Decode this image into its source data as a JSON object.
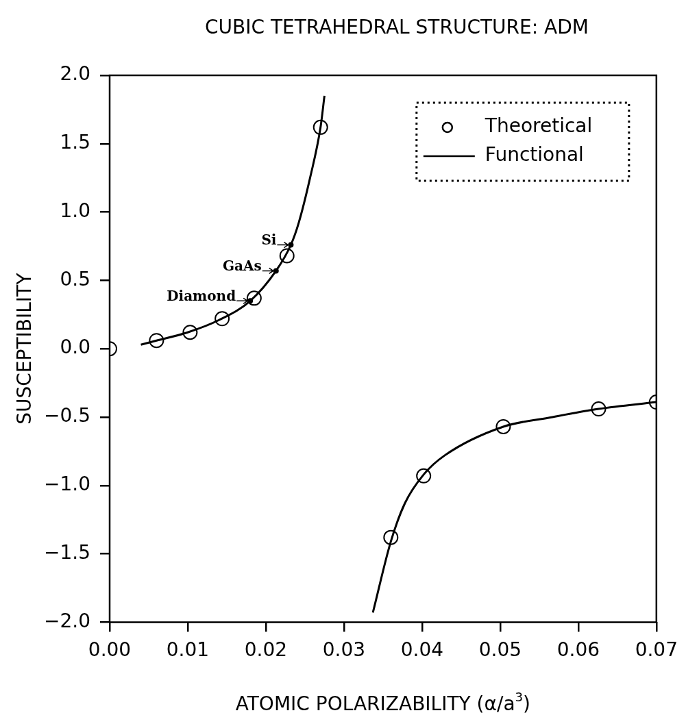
{
  "chart_data": {
    "type": "scatter",
    "title": "CUBIC TETRAHEDRAL STRUCTURE: ADM",
    "xlabel": "ATOMIC POLARIZABILITY (α/a$^{3}$)",
    "ylabel": "SUSCEPTIBILITY",
    "xlim": [
      0,
      0.07
    ],
    "ylim": [
      -2,
      2
    ],
    "xticks": [
      {
        "value": 0,
        "label": "0.00"
      },
      0.01,
      0.02,
      0.03,
      0.04,
      0.05,
      0.06,
      0.07
    ],
    "yticks": [
      {
        "value": -2,
        "label": "−2.0"
      },
      {
        "value": -1.5,
        "label": "−1.5"
      },
      {
        "value": -1,
        "label": "−1.0"
      },
      {
        "value": -0.5,
        "label": "−0.5"
      },
      {
        "value": 0,
        "label": "0.0"
      },
      0.5,
      {
        "value": 1,
        "label": "1.0"
      },
      1.5,
      {
        "value": 2,
        "label": "2.0"
      }
    ],
    "grid": false,
    "legend": "top right",
    "series": [
      {
        "name": "Theoretical",
        "type": "scatter",
        "marker": "circle",
        "color": "#000000",
        "x": [
          0,
          0.006,
          0.0103,
          0.0144,
          0.0185,
          0.0227,
          0.027,
          0.036,
          0.0402,
          0.0504,
          0.0626,
          0.07
        ],
        "values": [
          0,
          0.06,
          0.12,
          0.22,
          0.37,
          0.68,
          1.62,
          -1.38,
          -0.93,
          -0.57,
          -0.44,
          -0.39
        ]
      },
      {
        "name": "Functional",
        "type": "line",
        "marker": "none",
        "line_style": "solid",
        "color": "#000000",
        "x": [
          0.004,
          0.006,
          0.01,
          0.014,
          0.018,
          0.0213,
          0.0232,
          0.0242,
          0.0257,
          0.027,
          0.0275
        ],
        "values": [
          0.03,
          0.06,
          0.12,
          0.21,
          0.35,
          0.57,
          0.76,
          0.92,
          1.26,
          1.62,
          1.85
        ]
      },
      {
        "type": "line",
        "marker": "none",
        "line_style": "solid",
        "color": "#000000",
        "x": [
          0.0337,
          0.036,
          0.0378,
          0.0402,
          0.0429,
          0.0504,
          0.0562,
          0.0626,
          0.07
        ],
        "values": [
          -1.93,
          -1.41,
          -1.13,
          -0.92,
          -0.78,
          -0.57,
          -0.505,
          -0.44,
          -0.39
        ]
      }
    ],
    "annotations": [
      {
        "text": "Si",
        "x": 0.0232,
        "y": 0.76
      },
      {
        "text": "GaAs",
        "x": 0.0213,
        "y": 0.57
      },
      {
        "text": "Diamond",
        "x": 0.018,
        "y": 0.35
      }
    ]
  }
}
